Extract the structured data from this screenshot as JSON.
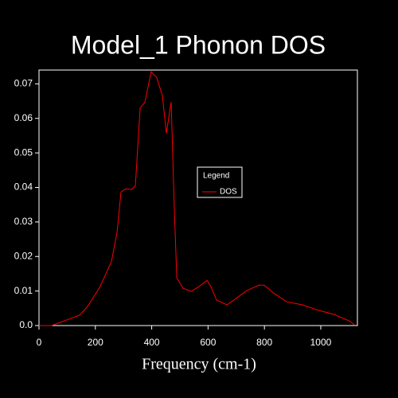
{
  "chart_data": {
    "type": "line",
    "title": "Model_1 Phonon DOS",
    "x_label": "Frequency (cm-1)",
    "legend_title": "Legend",
    "x": [
      0,
      45,
      144,
      172,
      215,
      243,
      257,
      277,
      291,
      308,
      328,
      342,
      359,
      376,
      398,
      418,
      438,
      452,
      469,
      480,
      489,
      511,
      540,
      568,
      596,
      610,
      630,
      667,
      695,
      737,
      780,
      799,
      836,
      879,
      935,
      992,
      1048,
      1105,
      1119
    ],
    "series": [
      {
        "name": "DOS",
        "color": "#ff0000",
        "values": [
          0,
          0,
          0.003,
          0.0055,
          0.011,
          0.016,
          0.0185,
          0.027,
          0.0387,
          0.0396,
          0.0394,
          0.0405,
          0.063,
          0.0647,
          0.0735,
          0.0718,
          0.0665,
          0.0557,
          0.0647,
          0.0343,
          0.0138,
          0.0108,
          0.0099,
          0.0113,
          0.0131,
          0.0113,
          0.0074,
          0.006,
          0.0076,
          0.0101,
          0.0117,
          0.0117,
          0.0092,
          0.0069,
          0.006,
          0.0044,
          0.0032,
          0.0012,
          0.0002
        ]
      }
    ],
    "xlim": [
      0,
      1130
    ],
    "xticks": [
      0,
      200,
      400,
      600,
      800,
      1000
    ],
    "ylim": [
      0,
      0.074
    ],
    "yticks": [
      {
        "value": 0,
        "label": "0.0"
      },
      0.01,
      0.02,
      0.03,
      0.04,
      0.05,
      0.06,
      0.07
    ],
    "legend": "center-right"
  }
}
